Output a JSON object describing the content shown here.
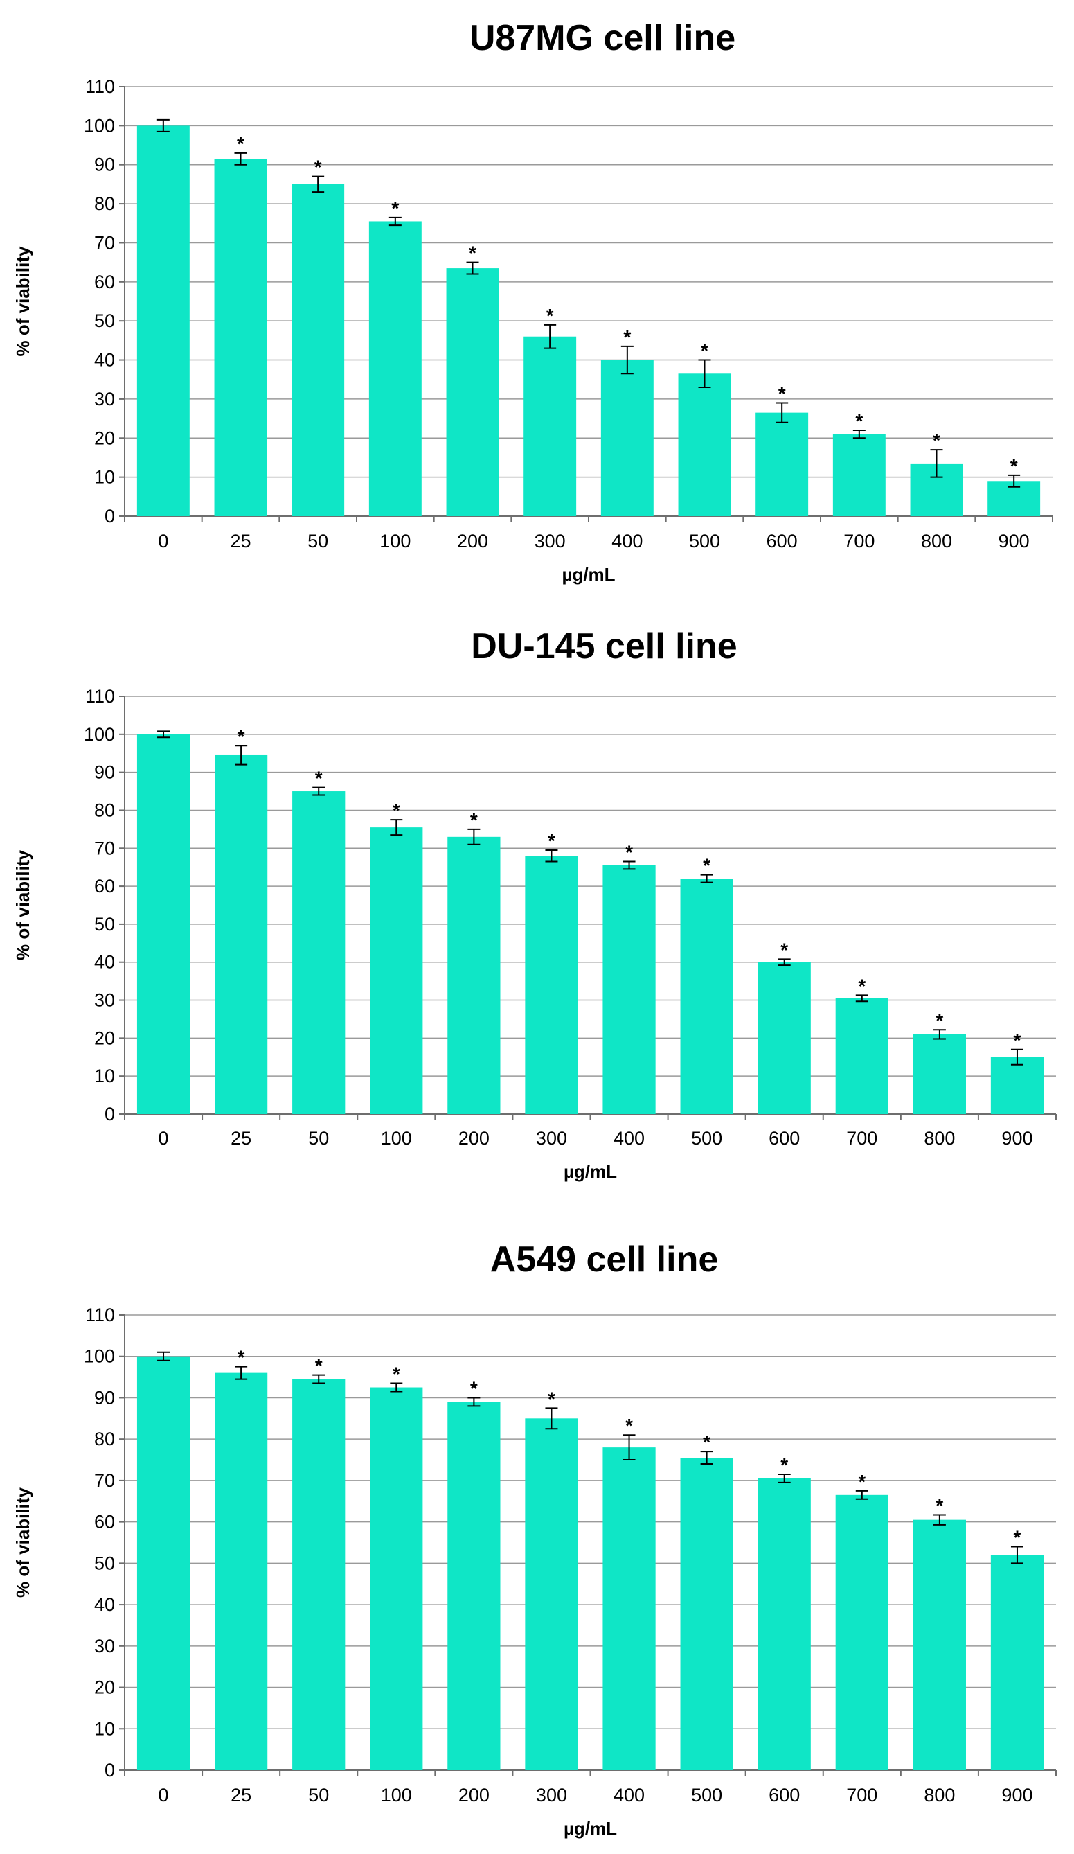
{
  "chart_data": [
    {
      "type": "bar",
      "title": "U87MG cell line",
      "xlabel": "µg/mL",
      "ylabel": "% of viability",
      "ylim": [
        0,
        110
      ],
      "yticks": [
        0,
        10,
        20,
        30,
        40,
        50,
        60,
        70,
        80,
        90,
        100,
        110
      ],
      "grid": true,
      "bar_color": "#0fe6c6",
      "categories": [
        "0",
        "25",
        "50",
        "100",
        "200",
        "300",
        "400",
        "500",
        "600",
        "700",
        "800",
        "900"
      ],
      "values": [
        100,
        91.5,
        85,
        75.5,
        63.5,
        46,
        40,
        36.5,
        26.5,
        21,
        13.5,
        9
      ],
      "errors": [
        1.5,
        1.5,
        2,
        1,
        1.5,
        3,
        3.5,
        3.5,
        2.5,
        1,
        3.5,
        1.5
      ],
      "significance": [
        "",
        "*",
        "*",
        "*",
        "*",
        "*",
        "*",
        "*",
        "*",
        "*",
        "*",
        "*"
      ]
    },
    {
      "type": "bar",
      "title": "DU-145 cell line",
      "xlabel": "µg/mL",
      "ylabel": "% of viability",
      "ylim": [
        0,
        110
      ],
      "yticks": [
        0,
        10,
        20,
        30,
        40,
        50,
        60,
        70,
        80,
        90,
        100,
        110
      ],
      "grid": true,
      "bar_color": "#0fe6c6",
      "categories": [
        "0",
        "25",
        "50",
        "100",
        "200",
        "300",
        "400",
        "500",
        "600",
        "700",
        "800",
        "900"
      ],
      "values": [
        100,
        94.5,
        85,
        75.5,
        73,
        68,
        65.5,
        62,
        40,
        30.5,
        21,
        15
      ],
      "errors": [
        0.8,
        2.5,
        1,
        2,
        2,
        1.5,
        1,
        1,
        0.8,
        0.8,
        1.2,
        2
      ],
      "significance": [
        "",
        "*",
        "*",
        "*",
        "*",
        "*",
        "*",
        "*",
        "*",
        "*",
        "*",
        "*"
      ]
    },
    {
      "type": "bar",
      "title": "A549 cell line",
      "xlabel": "µg/mL",
      "ylabel": "% of viability",
      "ylim": [
        0,
        110
      ],
      "yticks": [
        0,
        10,
        20,
        30,
        40,
        50,
        60,
        70,
        80,
        90,
        100,
        110
      ],
      "grid": true,
      "bar_color": "#0fe6c6",
      "categories": [
        "0",
        "25",
        "50",
        "100",
        "200",
        "300",
        "400",
        "500",
        "600",
        "700",
        "800",
        "900"
      ],
      "values": [
        100,
        96,
        94.5,
        92.5,
        89,
        85,
        78,
        75.5,
        70.5,
        66.5,
        60.5,
        52
      ],
      "errors": [
        1,
        1.5,
        1,
        1,
        1,
        2.5,
        3,
        1.5,
        1,
        1,
        1.2,
        2
      ],
      "significance": [
        "",
        "*",
        "*",
        "*",
        "*",
        "*",
        "*",
        "*",
        "*",
        "*",
        "*",
        "*"
      ]
    }
  ]
}
